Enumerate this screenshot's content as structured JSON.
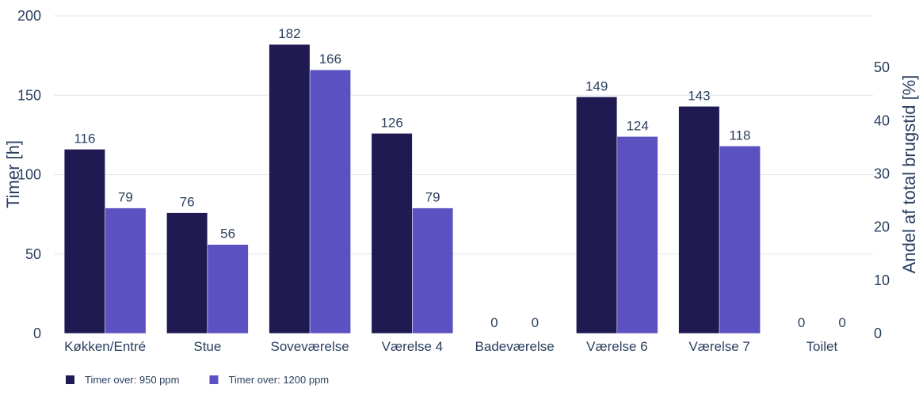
{
  "chart_data": {
    "type": "bar",
    "categories": [
      "Køkken/Entré",
      "Stue",
      "Soveværelse",
      "Værelse 4",
      "Badeværelse",
      "Værelse 6",
      "Værelse 7",
      "Toilet"
    ],
    "series": [
      {
        "name": "Timer over: 950 ppm",
        "values": [
          116,
          76,
          182,
          126,
          0,
          149,
          143,
          0
        ],
        "color": "#1f1a52"
      },
      {
        "name": "Timer over: 1200 ppm",
        "values": [
          79,
          56,
          166,
          79,
          0,
          124,
          118,
          0
        ],
        "color": "#5b51c0"
      }
    ],
    "ylabel": "Timer [h]",
    "y2label": "Andel af total brugstid [%]",
    "ylim": [
      0,
      200
    ],
    "yticks": [
      0,
      50,
      100,
      150,
      200
    ],
    "y2lim": [
      0,
      59.7
    ],
    "y2ticks": [
      0,
      10,
      20,
      30,
      40,
      50
    ],
    "grid": true,
    "legend_position": "bottom-left"
  }
}
